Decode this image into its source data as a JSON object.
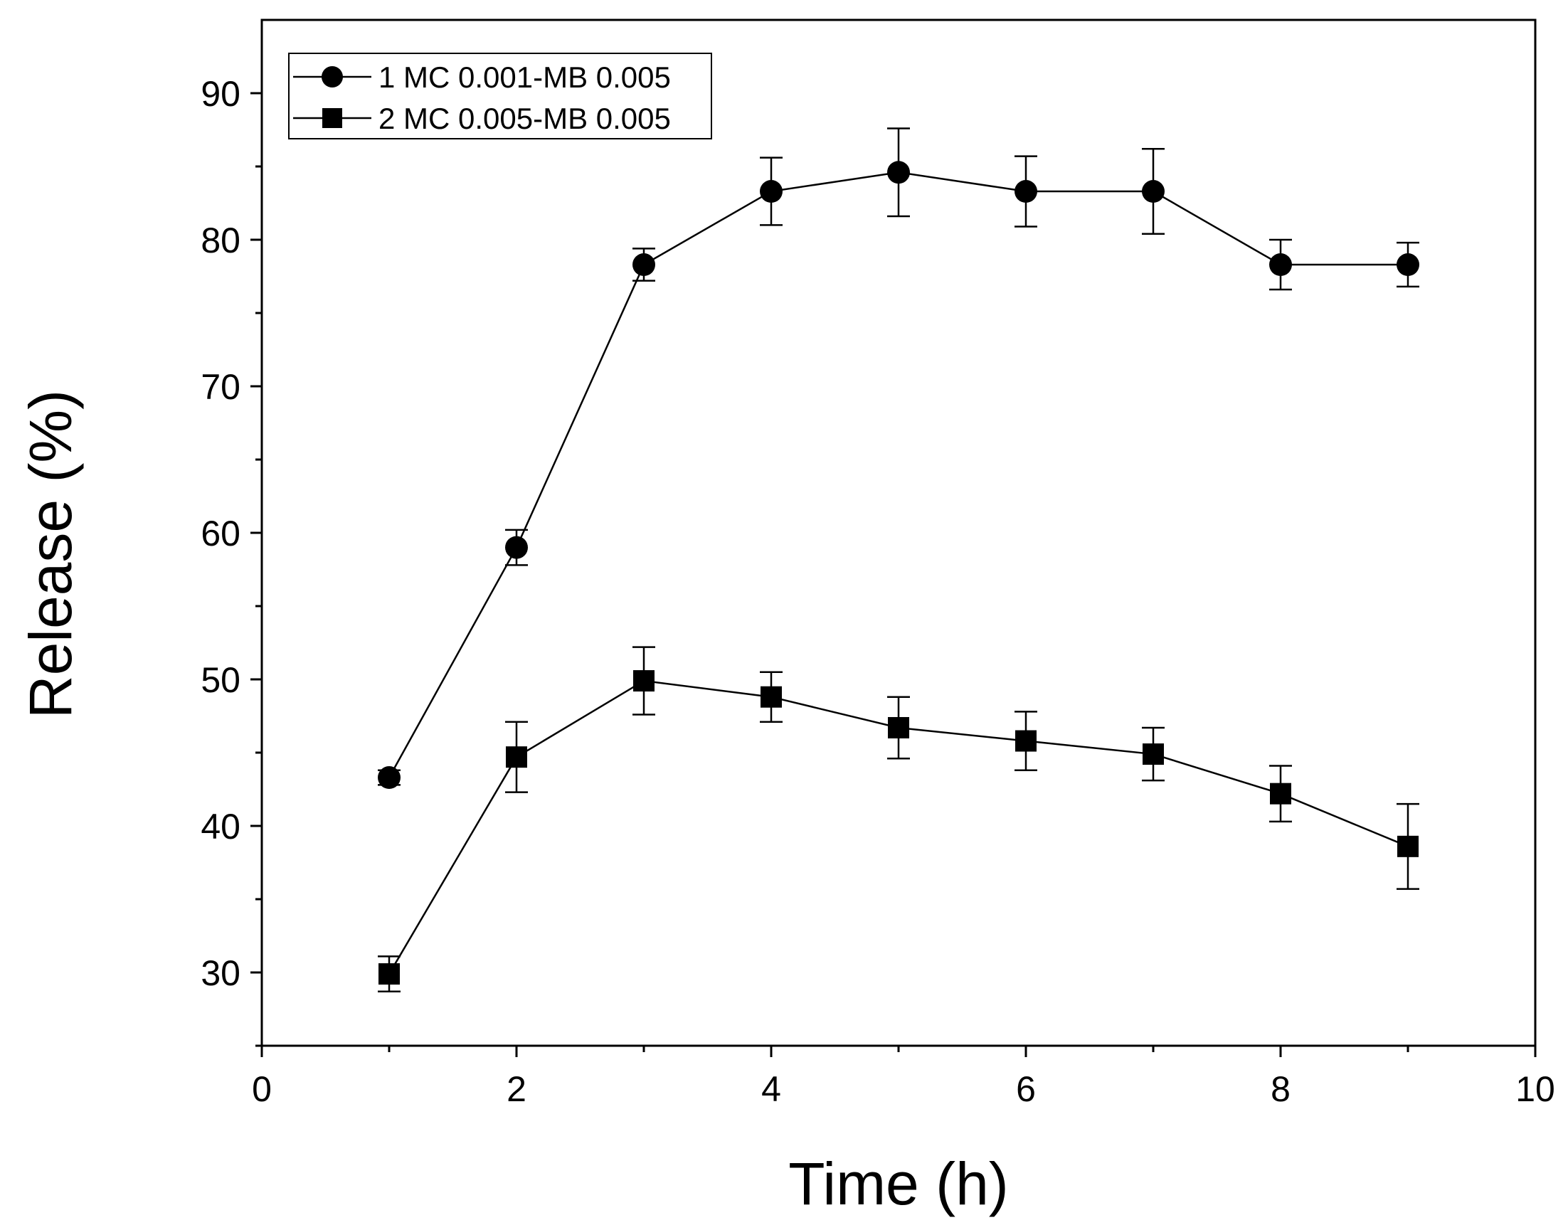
{
  "chart_data": {
    "type": "line",
    "title": "",
    "xlabel": "Time (h)",
    "ylabel": "Release (%)",
    "xlim": [
      0,
      10
    ],
    "ylim": [
      25,
      95
    ],
    "xticks": [
      "0",
      "2",
      "4",
      "6",
      "8",
      "10"
    ],
    "yticks": [
      "30",
      "40",
      "50",
      "60",
      "70",
      "80",
      "90"
    ],
    "grid": false,
    "legend_position": "top-left",
    "x": [
      1,
      2,
      3,
      4,
      5,
      6,
      7,
      8,
      9
    ],
    "series": [
      {
        "name": "1 MC 0.001-MB 0.005",
        "marker": "circle",
        "values": [
          43.3,
          59.0,
          78.3,
          83.3,
          84.6,
          83.3,
          83.3,
          78.3,
          78.3
        ],
        "errors": [
          0.5,
          1.2,
          1.1,
          2.3,
          3.0,
          2.4,
          2.9,
          1.7,
          1.5
        ]
      },
      {
        "name": "2 MC 0.005-MB 0.005",
        "marker": "square",
        "values": [
          29.9,
          44.7,
          49.9,
          48.8,
          46.7,
          45.8,
          44.9,
          42.2,
          38.6
        ],
        "errors": [
          1.2,
          2.4,
          2.3,
          1.7,
          2.1,
          2.0,
          1.8,
          1.9,
          2.9
        ]
      }
    ]
  },
  "colors": {
    "line": "#000000",
    "background": "#ffffff"
  }
}
